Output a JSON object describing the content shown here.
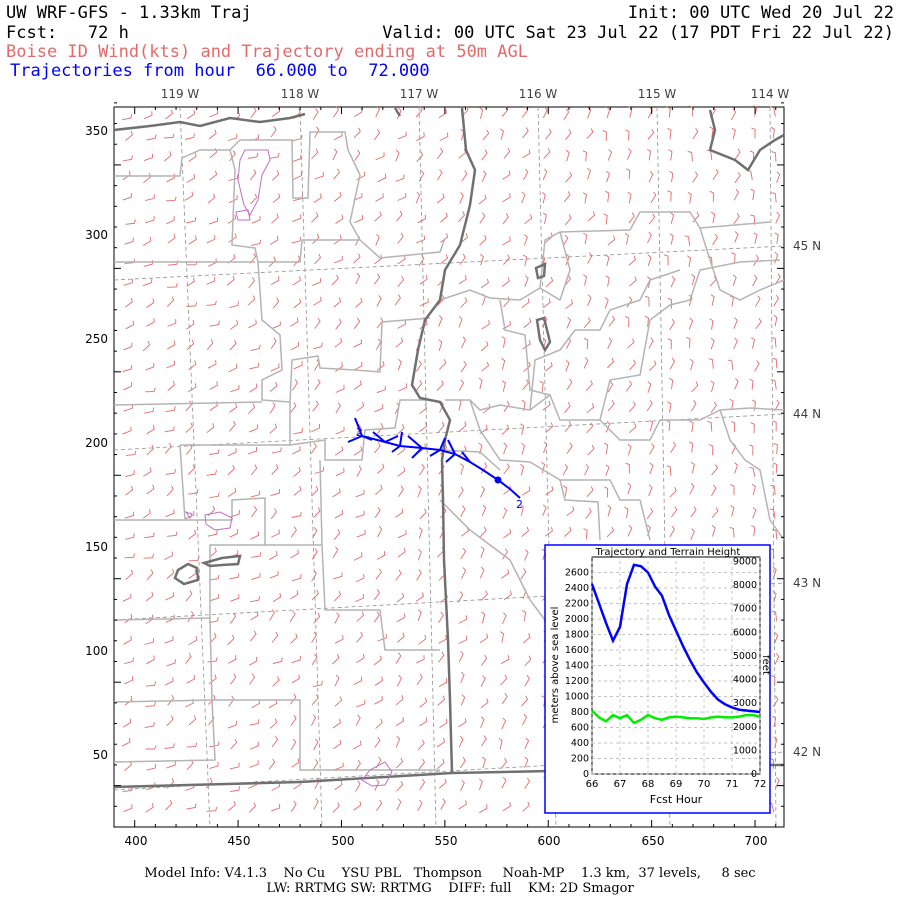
{
  "header": {
    "title": "UW WRF-GFS - 1.33km Traj",
    "init": "Init: 00 UTC Wed 20 Jul 22",
    "fcst": "Fcst:   72 h",
    "valid": "Valid: 00 UTC Sat 23 Jul 22 (17 PDT Fri 22 Jul 22)",
    "subtitle": "Boise ID Wind(kts) and Trajectory ending at 50m AGL",
    "traj_hours": "Trajectories from hour  66.000 to  72.000"
  },
  "map": {
    "lon_labels": [
      "119 W",
      "118 W",
      "117 W",
      "116 W",
      "115 W",
      "114 W"
    ],
    "lat_labels": [
      "45 N",
      "44 N",
      "43 N",
      "42 N"
    ],
    "x_ticks": [
      "400",
      "450",
      "500",
      "550",
      "600",
      "650",
      "700"
    ],
    "y_ticks": [
      "350",
      "300",
      "250",
      "200",
      "150",
      "100",
      "50"
    ],
    "trajectory_marker_start": "2",
    "trajectory_marker_end": "2",
    "colors": {
      "barbs": "#e36a6a",
      "borders": "#b4b4b4",
      "state_line": "#707070",
      "trajectory": "#0000ff",
      "lakes": "#c070c0"
    }
  },
  "inset": {
    "title": "Trajectory and Terrain Height",
    "left_axis_label": "meters above sea level",
    "right_axis_label": "feet",
    "x_axis_label": "Fcst Hour",
    "x_ticks": [
      "66",
      "67",
      "68",
      "69",
      "70",
      "71",
      "72"
    ],
    "left_ticks": [
      "2600",
      "2400",
      "2200",
      "2000",
      "1800",
      "1600",
      "1400",
      "1200",
      "1000",
      "800",
      "600",
      "400",
      "200",
      "0"
    ],
    "right_ticks": [
      "9000",
      "8000",
      "7000",
      "6000",
      "5000",
      "4000",
      "3000",
      "2000",
      "1000",
      "0"
    ]
  },
  "chart_data": {
    "type": "line",
    "title": "Trajectory and Terrain Height",
    "xlabel": "Fcst Hour",
    "ylabel": "meters above sea level",
    "xlim": [
      66,
      72
    ],
    "ylim": [
      0,
      2800
    ],
    "series": [
      {
        "color": "#0000ff",
        "x": [
          66.0,
          66.25,
          66.5,
          66.75,
          67.0,
          67.25,
          67.5,
          67.75,
          68.0,
          68.25,
          68.5,
          68.75,
          69.0,
          69.25,
          69.5,
          69.75,
          70.0,
          70.25,
          70.5,
          70.75,
          71.0,
          71.25,
          71.5,
          71.75,
          72.0
        ],
        "values": [
          2450,
          2200,
          1950,
          1720,
          1900,
          2450,
          2700,
          2680,
          2600,
          2420,
          2300,
          2050,
          1850,
          1650,
          1470,
          1310,
          1180,
          1060,
          960,
          900,
          860,
          830,
          820,
          810,
          800
        ]
      },
      {
        "color": "#00ee00",
        "x": [
          66.0,
          66.25,
          66.5,
          66.75,
          67.0,
          67.25,
          67.5,
          67.75,
          68.0,
          68.25,
          68.5,
          68.75,
          69.0,
          69.25,
          69.5,
          69.75,
          70.0,
          70.25,
          70.5,
          70.75,
          71.0,
          71.25,
          71.5,
          71.75,
          72.0
        ],
        "values": [
          820,
          730,
          680,
          760,
          720,
          760,
          660,
          700,
          760,
          720,
          700,
          730,
          740,
          730,
          720,
          720,
          710,
          730,
          740,
          730,
          730,
          740,
          760,
          760,
          740
        ]
      }
    ]
  },
  "footer": {
    "line1": "Model Info: V4.1.3    No Cu    YSU PBL   Thompson     Noah-MP    1.3 km,  37 levels,     8 sec",
    "line2": "LW: RRTMG SW: RRTMG    DIFF: full    KM: 2D Smagor"
  }
}
